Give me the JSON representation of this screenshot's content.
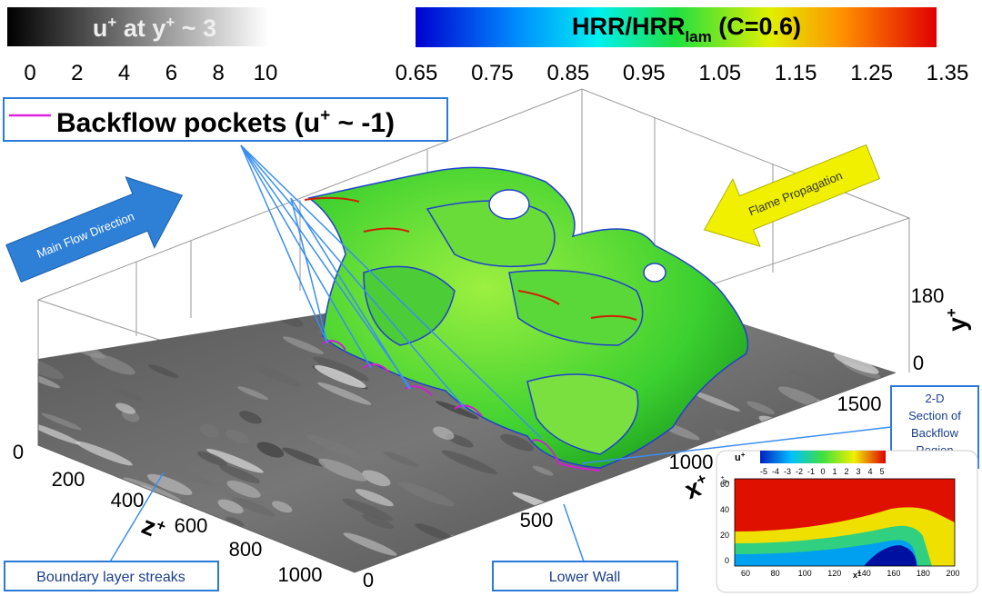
{
  "colorbar_u": {
    "title": [
      "u",
      "+",
      " at y",
      "+",
      " ~ 3"
    ],
    "ticks": [
      "0",
      "2",
      "4",
      "6",
      "8",
      "10"
    ]
  },
  "colorbar_hrr": {
    "title": [
      "HRR/HRR",
      "lam",
      " (C=0.6)"
    ],
    "ticks": [
      "0.65",
      "0.75",
      "0.85",
      "0.95",
      "1.05",
      "1.15",
      "1.25",
      "1.35"
    ]
  },
  "legend": {
    "label": [
      "Backflow pockets (u",
      "+",
      " ~ -1)"
    ]
  },
  "arrows": {
    "main_flow": "Main Flow Direction",
    "flame": "Flame Propagation"
  },
  "axes": {
    "y": {
      "label": [
        "y",
        "+"
      ],
      "ticks": [
        "180",
        "0"
      ]
    },
    "x": {
      "label": [
        "x",
        "+"
      ],
      "ticks": [
        "1500",
        "1000",
        "500",
        "0"
      ]
    },
    "z": {
      "label": [
        "z",
        "+"
      ],
      "ticks": [
        "0",
        "200",
        "400",
        "600",
        "800",
        "1000"
      ]
    }
  },
  "annotations": {
    "streaks": "Boundary layer streaks",
    "wall": "Lower Wall",
    "section": [
      "2-D",
      "Section of",
      "Backflow",
      "Region"
    ]
  },
  "inset": {
    "colorbar_label": [
      "u",
      "+"
    ],
    "colorbar_ticks": [
      "-5",
      "-4",
      "-3",
      "-2",
      "-1",
      "0",
      "1",
      "2",
      "3",
      "4",
      "5"
    ],
    "y_label": [
      "y",
      "+"
    ],
    "y_ticks": [
      "0",
      "20",
      "40",
      "60"
    ],
    "x_label": [
      "x",
      "+"
    ],
    "x_ticks": [
      "60",
      "80",
      "100",
      "120",
      "140",
      "160",
      "180",
      "200"
    ]
  }
}
